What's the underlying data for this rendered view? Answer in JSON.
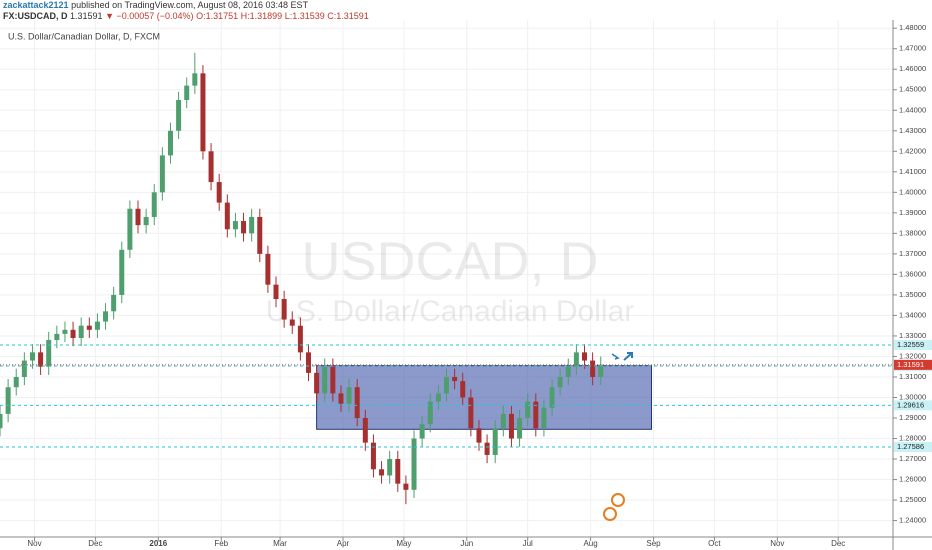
{
  "header": {
    "author": "zackattack2121",
    "published": " published on TradingView.com, August 08, 2016 03:48 EST",
    "symbol": "FX:USDCAD, D",
    "last": "1.31591",
    "change": "▼ −0.00057 (−0.04%)",
    "open": "O:1.31751",
    "high": "H:1.31899",
    "low": "L:1.31539",
    "close": "C:1.31591"
  },
  "chart_data": {
    "type": "candlestick",
    "title": "U.S. Dollar/Canadian Dollar, D, FXCM",
    "watermark": "USDCAD, D",
    "watermark_sub": "U.S. Dollar/Canadian Dollar",
    "up_color": "#4f9e6e",
    "down_color": "#a5302f",
    "grid": true,
    "xlim": [
      0,
      440
    ],
    "xticks": [
      {
        "value": 17,
        "label": "Nov"
      },
      {
        "value": 47,
        "label": "Dec"
      },
      {
        "value": 78,
        "label": "2016"
      },
      {
        "value": 109,
        "label": "Feb"
      },
      {
        "value": 138,
        "label": "Mar"
      },
      {
        "value": 169,
        "label": "Apr"
      },
      {
        "value": 199,
        "label": "May"
      },
      {
        "value": 230,
        "label": "Jun"
      },
      {
        "value": 260,
        "label": "Jul"
      },
      {
        "value": 291,
        "label": "Aug"
      },
      {
        "value": 322,
        "label": "Sep"
      },
      {
        "value": 352,
        "label": "Oct"
      },
      {
        "value": 383,
        "label": "Nov"
      },
      {
        "value": 413,
        "label": "Dec"
      }
    ],
    "ylim": [
      1.232,
      1.484
    ],
    "yticks": [
      {
        "value": 1.24,
        "label": "1.24000"
      },
      {
        "value": 1.25,
        "label": "1.25000"
      },
      {
        "value": 1.26,
        "label": "1.26000"
      },
      {
        "value": 1.27,
        "label": "1.27000"
      },
      {
        "value": 1.28,
        "label": "1.28000"
      },
      {
        "value": 1.29,
        "label": "1.29000"
      },
      {
        "value": 1.3,
        "label": "1.30000"
      },
      {
        "value": 1.31,
        "label": "1.31000"
      },
      {
        "value": 1.32,
        "label": "1.32000"
      },
      {
        "value": 1.33,
        "label": "1.33000"
      },
      {
        "value": 1.34,
        "label": "1.34000"
      },
      {
        "value": 1.35,
        "label": "1.35000"
      },
      {
        "value": 1.36,
        "label": "1.36000"
      },
      {
        "value": 1.37,
        "label": "1.37000"
      },
      {
        "value": 1.38,
        "label": "1.38000"
      },
      {
        "value": 1.39,
        "label": "1.39000"
      },
      {
        "value": 1.4,
        "label": "1.40000"
      },
      {
        "value": 1.41,
        "label": "1.41000"
      },
      {
        "value": 1.42,
        "label": "1.42000"
      },
      {
        "value": 1.43,
        "label": "1.43000"
      },
      {
        "value": 1.44,
        "label": "1.44000"
      },
      {
        "value": 1.45,
        "label": "1.45000"
      },
      {
        "value": 1.46,
        "label": "1.46000"
      },
      {
        "value": 1.47,
        "label": "1.47000"
      },
      {
        "value": 1.48,
        "label": "1.48000"
      }
    ],
    "levels": [
      {
        "value": 1.32559,
        "label": "1.32559"
      },
      {
        "value": 1.31533,
        "label": "1.31533"
      },
      {
        "value": 1.29616,
        "label": "1.29616"
      },
      {
        "value": 1.27586,
        "label": "1.27586"
      }
    ],
    "level_color": "#26c6da",
    "last_price": {
      "value": 1.31591,
      "label": "1.31591",
      "color": "#d33b30"
    },
    "zone": {
      "xlim": [
        156,
        321
      ],
      "ylim": [
        1.2845,
        1.3155
      ],
      "color": "#3f55a8"
    },
    "candles": [
      [
        0,
        1.285,
        1.296,
        1.281,
        1.292
      ],
      [
        4,
        1.292,
        1.309,
        1.288,
        1.305
      ],
      [
        8,
        1.305,
        1.314,
        1.301,
        1.31
      ],
      [
        12,
        1.31,
        1.322,
        1.306,
        1.318
      ],
      [
        16,
        1.318,
        1.326,
        1.314,
        1.322
      ],
      [
        20,
        1.322,
        1.326,
        1.311,
        1.315
      ],
      [
        24,
        1.315,
        1.332,
        1.311,
        1.328
      ],
      [
        28,
        1.328,
        1.335,
        1.324,
        1.331
      ],
      [
        32,
        1.331,
        1.337,
        1.327,
        1.333
      ],
      [
        36,
        1.333,
        1.337,
        1.325,
        1.329
      ],
      [
        40,
        1.329,
        1.339,
        1.325,
        1.335
      ],
      [
        44,
        1.335,
        1.339,
        1.329,
        1.333
      ],
      [
        48,
        1.333,
        1.341,
        1.329,
        1.337
      ],
      [
        52,
        1.337,
        1.346,
        1.333,
        1.342
      ],
      [
        56,
        1.342,
        1.354,
        1.338,
        1.35
      ],
      [
        60,
        1.35,
        1.376,
        1.346,
        1.372
      ],
      [
        64,
        1.372,
        1.396,
        1.368,
        1.392
      ],
      [
        68,
        1.392,
        1.396,
        1.38,
        1.384
      ],
      [
        72,
        1.384,
        1.392,
        1.38,
        1.388
      ],
      [
        76,
        1.388,
        1.404,
        1.384,
        1.4
      ],
      [
        80,
        1.4,
        1.422,
        1.396,
        1.418
      ],
      [
        84,
        1.418,
        1.434,
        1.414,
        1.43
      ],
      [
        88,
        1.43,
        1.449,
        1.426,
        1.445
      ],
      [
        92,
        1.445,
        1.456,
        1.441,
        1.452
      ],
      [
        96,
        1.452,
        1.468,
        1.448,
        1.458
      ],
      [
        100,
        1.458,
        1.462,
        1.416,
        1.42
      ],
      [
        104,
        1.42,
        1.424,
        1.401,
        1.405
      ],
      [
        108,
        1.405,
        1.409,
        1.391,
        1.395
      ],
      [
        112,
        1.395,
        1.399,
        1.378,
        1.382
      ],
      [
        116,
        1.382,
        1.39,
        1.378,
        1.386
      ],
      [
        120,
        1.386,
        1.39,
        1.376,
        1.38
      ],
      [
        124,
        1.38,
        1.392,
        1.376,
        1.388
      ],
      [
        128,
        1.388,
        1.392,
        1.366,
        1.37
      ],
      [
        132,
        1.37,
        1.374,
        1.351,
        1.355
      ],
      [
        136,
        1.355,
        1.359,
        1.344,
        1.348
      ],
      [
        140,
        1.348,
        1.352,
        1.334,
        1.338
      ],
      [
        144,
        1.338,
        1.342,
        1.331,
        1.335
      ],
      [
        148,
        1.335,
        1.339,
        1.318,
        1.322
      ],
      [
        152,
        1.322,
        1.326,
        1.308,
        1.312
      ],
      [
        156,
        1.312,
        1.316,
        1.298,
        1.302
      ],
      [
        160,
        1.302,
        1.319,
        1.298,
        1.315
      ],
      [
        164,
        1.315,
        1.319,
        1.298,
        1.302
      ],
      [
        168,
        1.302,
        1.306,
        1.293,
        1.297
      ],
      [
        172,
        1.297,
        1.309,
        1.293,
        1.305
      ],
      [
        176,
        1.305,
        1.309,
        1.286,
        1.29
      ],
      [
        180,
        1.29,
        1.294,
        1.274,
        1.278
      ],
      [
        184,
        1.278,
        1.282,
        1.261,
        1.265
      ],
      [
        188,
        1.265,
        1.269,
        1.258,
        1.262
      ],
      [
        192,
        1.262,
        1.274,
        1.258,
        1.27
      ],
      [
        196,
        1.27,
        1.274,
        1.254,
        1.258
      ],
      [
        200,
        1.258,
        1.262,
        1.248,
        1.255
      ],
      [
        204,
        1.255,
        1.284,
        1.251,
        1.28
      ],
      [
        208,
        1.28,
        1.291,
        1.276,
        1.287
      ],
      [
        212,
        1.287,
        1.302,
        1.283,
        1.298
      ],
      [
        216,
        1.298,
        1.306,
        1.294,
        1.302
      ],
      [
        220,
        1.302,
        1.314,
        1.298,
        1.31
      ],
      [
        224,
        1.31,
        1.314,
        1.304,
        1.308
      ],
      [
        228,
        1.308,
        1.312,
        1.296,
        1.3
      ],
      [
        232,
        1.3,
        1.304,
        1.281,
        1.285
      ],
      [
        236,
        1.285,
        1.289,
        1.274,
        1.278
      ],
      [
        240,
        1.278,
        1.282,
        1.268,
        1.272
      ],
      [
        244,
        1.272,
        1.289,
        1.268,
        1.285
      ],
      [
        248,
        1.285,
        1.296,
        1.281,
        1.292
      ],
      [
        252,
        1.292,
        1.296,
        1.276,
        1.28
      ],
      [
        256,
        1.28,
        1.294,
        1.276,
        1.29
      ],
      [
        260,
        1.29,
        1.302,
        1.286,
        1.298
      ],
      [
        264,
        1.298,
        1.302,
        1.281,
        1.285
      ],
      [
        268,
        1.285,
        1.299,
        1.281,
        1.295
      ],
      [
        272,
        1.295,
        1.309,
        1.291,
        1.305
      ],
      [
        276,
        1.305,
        1.314,
        1.301,
        1.31
      ],
      [
        280,
        1.31,
        1.319,
        1.306,
        1.315
      ],
      [
        284,
        1.315,
        1.326,
        1.311,
        1.322
      ],
      [
        288,
        1.322,
        1.326,
        1.314,
        1.318
      ],
      [
        292,
        1.318,
        1.322,
        1.306,
        1.31
      ],
      [
        296,
        1.31,
        1.32,
        1.306,
        1.316
      ]
    ]
  }
}
